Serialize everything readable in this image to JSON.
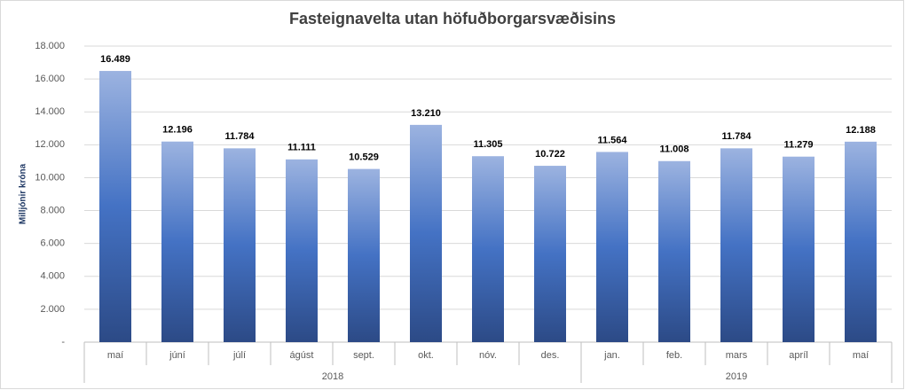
{
  "chart_data": {
    "type": "bar",
    "title": "Fasteignavelta utan höfuðborgarsvæðisins",
    "y_label": "Milljónir króna",
    "groups": [
      {
        "name": "2018",
        "categories": [
          "maí",
          "júní",
          "júlí",
          "ágúst",
          "sept.",
          "okt.",
          "nóv.",
          "des."
        ]
      },
      {
        "name": "2019",
        "categories": [
          "jan.",
          "feb.",
          "mars",
          "apríl",
          "maí"
        ]
      }
    ],
    "values": [
      16489,
      12196,
      11784,
      11111,
      10529,
      13210,
      11305,
      10722,
      11564,
      11008,
      11784,
      11279,
      12188
    ],
    "value_labels": [
      "16.489",
      "12.196",
      "11.784",
      "11.111",
      "10.529",
      "13.210",
      "11.305",
      "10.722",
      "11.564",
      "11.008",
      "11.784",
      "11.279",
      "12.188"
    ],
    "color": "#4472c4",
    "ylim": [
      0,
      18000
    ],
    "yticks": [
      {
        "value": 0,
        "label": "-"
      },
      {
        "value": 2000,
        "label": "2.000"
      },
      {
        "value": 4000,
        "label": "4.000"
      },
      {
        "value": 6000,
        "label": "6.000"
      },
      {
        "value": 8000,
        "label": "8.000"
      },
      {
        "value": 10000,
        "label": "10.000"
      },
      {
        "value": 12000,
        "label": "12.000"
      },
      {
        "value": 14000,
        "label": "14.000"
      },
      {
        "value": 16000,
        "label": "16.000"
      },
      {
        "value": 18000,
        "label": "18.000"
      }
    ],
    "grid": true
  }
}
